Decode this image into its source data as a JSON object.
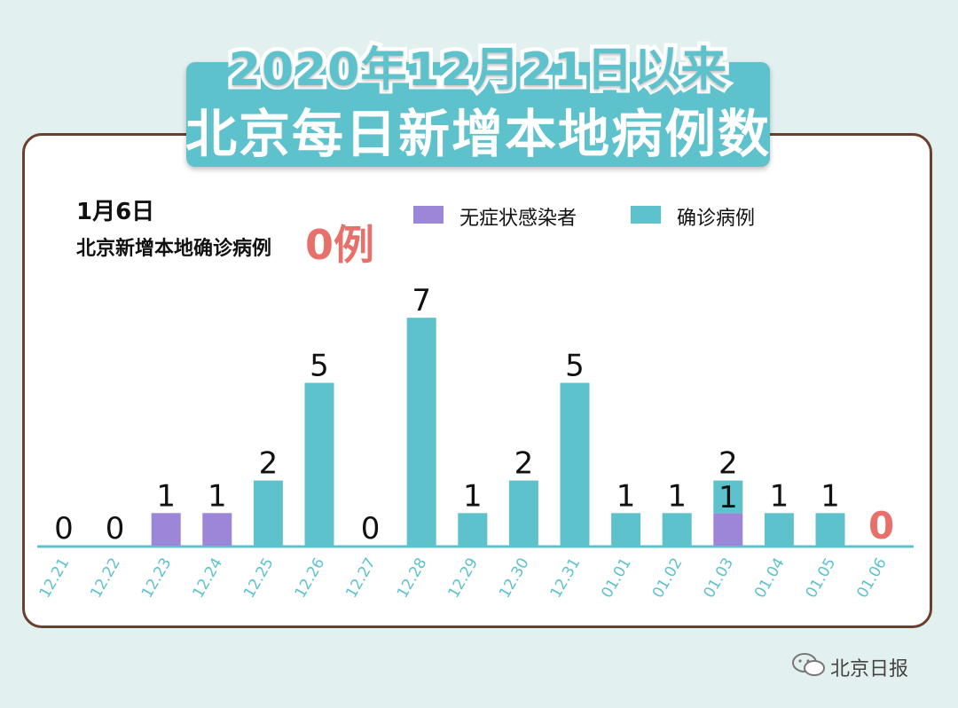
{
  "header": {
    "title_line1": "2020年12月21日以来",
    "title_line2": "北京每日新增本地病例数"
  },
  "summary": {
    "date": "1月6日",
    "label": "北京新增本地确诊病例",
    "value": "0例"
  },
  "legend": [
    {
      "label": "无症状感染者",
      "color": "#9b86d8"
    },
    {
      "label": "确诊病例",
      "color": "#5ec2cc"
    }
  ],
  "footer": {
    "signature": "北京日报"
  },
  "colors": {
    "confirmed": "#5ec2cc",
    "asymptomatic": "#9b86d8",
    "axis": "#5ec2cc",
    "highlight": "#e8706a"
  },
  "chart_data": {
    "type": "bar",
    "categories": [
      "12.21",
      "12.22",
      "12.23",
      "12.24",
      "12.25",
      "12.26",
      "12.27",
      "12.28",
      "12.29",
      "12.30",
      "12.31",
      "01.01",
      "01.02",
      "01.03",
      "01.04",
      "01.05",
      "01.06"
    ],
    "series": [
      {
        "name": "无症状感染者",
        "values": [
          0,
          0,
          1,
          1,
          0,
          0,
          0,
          0,
          0,
          0,
          0,
          0,
          0,
          1,
          0,
          0,
          0
        ]
      },
      {
        "name": "确诊病例",
        "values": [
          0,
          0,
          0,
          0,
          2,
          5,
          0,
          7,
          1,
          2,
          5,
          1,
          1,
          1,
          1,
          1,
          0
        ]
      }
    ],
    "labels": [
      "0",
      "0",
      "1",
      "1",
      "2",
      "5",
      "0",
      "7",
      "1",
      "2",
      "5",
      "1",
      "1",
      "2",
      "1",
      "1",
      "0"
    ],
    "inner_labels": {
      "13": "1"
    },
    "stacked": true,
    "ylim": [
      0,
      7
    ],
    "grid": false
  }
}
